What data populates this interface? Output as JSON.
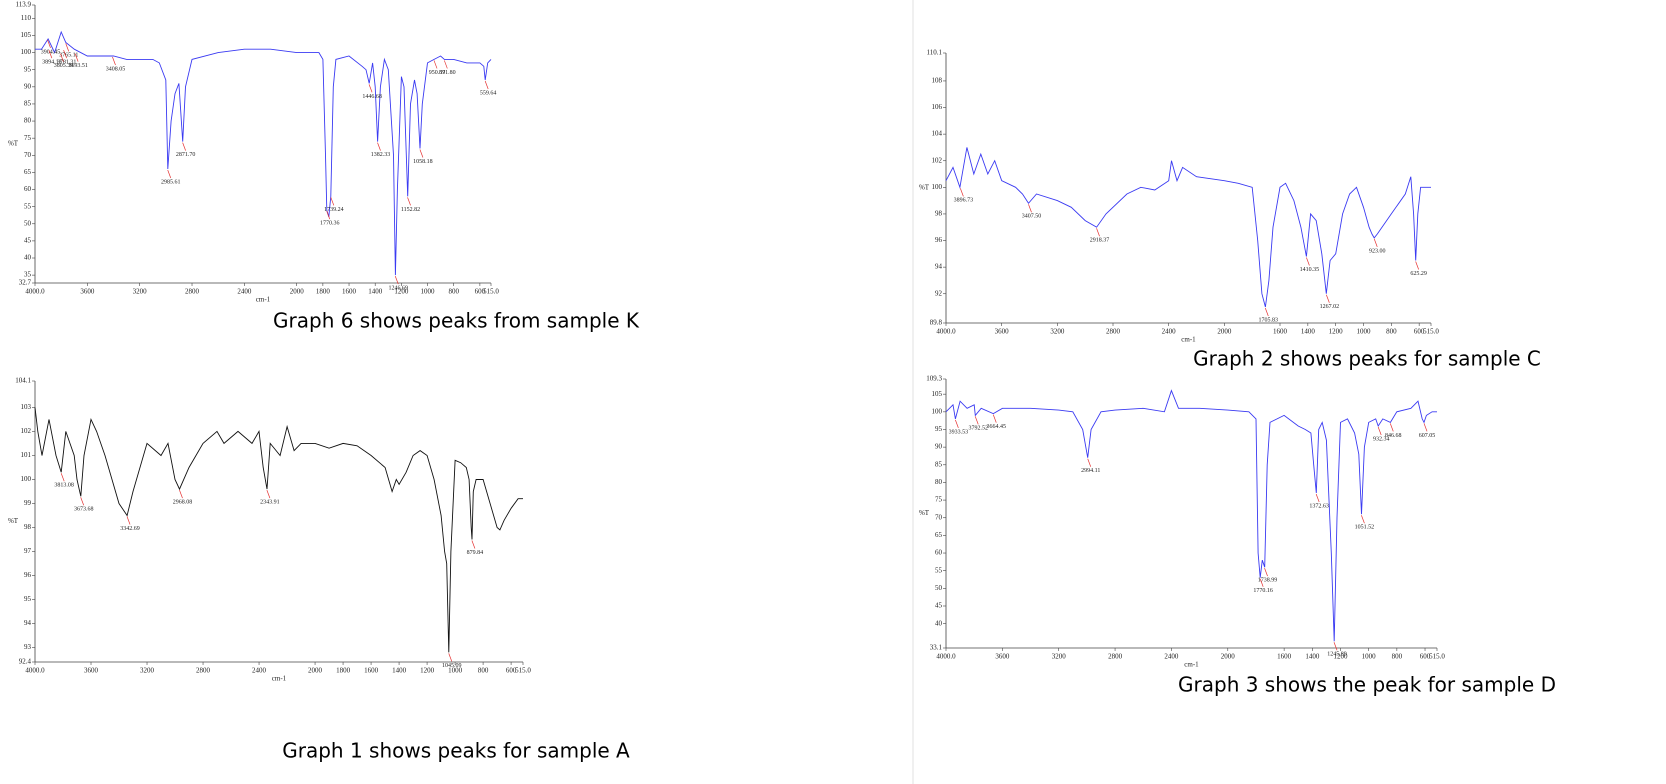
{
  "chart_data": [
    {
      "type": "line",
      "caption": "Graph 6 shows peaks from sample K",
      "xlabel": "cm-1",
      "ylabel": "%T",
      "x": [
        4000,
        3950,
        3900,
        3850,
        3800,
        3765,
        3700,
        3600,
        3500,
        3400,
        3300,
        3200,
        3100,
        3050,
        3000,
        2985,
        2960,
        2930,
        2900,
        2871,
        2850,
        2800,
        2600,
        2400,
        2200,
        2000,
        1900,
        1830,
        1800,
        1780,
        1770,
        1755,
        1739,
        1720,
        1700,
        1600,
        1500,
        1470,
        1446,
        1420,
        1400,
        1382,
        1360,
        1330,
        1300,
        1260,
        1246,
        1230,
        1200,
        1180,
        1152,
        1130,
        1100,
        1080,
        1058,
        1040,
        1000,
        950,
        900,
        871,
        800,
        700,
        600,
        570,
        559,
        540,
        515
      ],
      "series": [
        {
          "color": "#3a3af2",
          "values": [
            101,
            101,
            104,
            100,
            106,
            103,
            101,
            99,
            99,
            99,
            98,
            98,
            98,
            97,
            92,
            66,
            80,
            88,
            91,
            74,
            90,
            98,
            100,
            101,
            101,
            100,
            100,
            100,
            98,
            70,
            54,
            52,
            58,
            90,
            98,
            99,
            96,
            95,
            91,
            97,
            90,
            74,
            90,
            98,
            95,
            70,
            35,
            60,
            93,
            90,
            58,
            85,
            92,
            88,
            72,
            85,
            97,
            98,
            99,
            98,
            98,
            97,
            97,
            96,
            92,
            97,
            98
          ]
        }
      ],
      "xlim": [
        4000,
        515
      ],
      "ylim": [
        32.7,
        113.9
      ],
      "xticks": [
        {
          "value": 4000,
          "label": "4000.0"
        },
        3600,
        3200,
        2800,
        2400,
        2000,
        1800,
        1600,
        1400,
        1200,
        1000,
        800,
        600,
        {
          "value": 515,
          "label": "515.0"
        }
      ],
      "yticks": [
        32.7,
        35,
        40,
        45,
        50,
        55,
        60,
        65,
        70,
        75,
        80,
        85,
        90,
        95,
        100,
        105,
        110,
        113.9
      ],
      "peaks": [
        {
          "x": 3904.45,
          "y": 104,
          "label": "3904.45"
        },
        {
          "x": 3765.11,
          "y": 103,
          "label": "3765.11"
        },
        {
          "x": 3894.18,
          "y": 101,
          "label": "3894.18"
        },
        {
          "x": 3693.51,
          "y": 100,
          "label": "3693.51"
        },
        {
          "x": 3408.05,
          "y": 99,
          "label": "3408.05"
        },
        {
          "x": 3781.31,
          "y": 101,
          "label": "3781.31"
        },
        {
          "x": 3805.39,
          "y": 100,
          "label": "3805.39"
        },
        {
          "x": 2985.61,
          "y": 66,
          "label": "2985.61"
        },
        {
          "x": 2871.7,
          "y": 74,
          "label": "2871.70"
        },
        {
          "x": 1770.36,
          "y": 54,
          "label": "1770.36"
        },
        {
          "x": 1739.24,
          "y": 58,
          "label": "1739.24"
        },
        {
          "x": 1446.68,
          "y": 91,
          "label": "1446.68"
        },
        {
          "x": 1382.33,
          "y": 74,
          "label": "1382.33"
        },
        {
          "x": 1246.69,
          "y": 35,
          "label": "1246.69"
        },
        {
          "x": 1152.82,
          "y": 58,
          "label": "1152.82"
        },
        {
          "x": 1058.18,
          "y": 72,
          "label": "1058.18"
        },
        {
          "x": 950.59,
          "y": 98,
          "label": "950.59"
        },
        {
          "x": 871.8,
          "y": 98,
          "label": "871.80"
        },
        {
          "x": 559.64,
          "y": 92,
          "label": "559.64"
        }
      ]
    },
    {
      "type": "line",
      "caption": "Graph 2 shows peaks for sample C",
      "xlabel": "cm-1",
      "ylabel": "%T",
      "x": [
        4000,
        3950,
        3900,
        3850,
        3800,
        3750,
        3700,
        3650,
        3600,
        3500,
        3450,
        3407,
        3350,
        3200,
        3100,
        3000,
        2918,
        2850,
        2700,
        2600,
        2500,
        2400,
        2380,
        2340,
        2300,
        2200,
        2000,
        1900,
        1800,
        1760,
        1730,
        1705,
        1680,
        1650,
        1600,
        1560,
        1500,
        1450,
        1410,
        1380,
        1340,
        1300,
        1267,
        1240,
        1200,
        1150,
        1100,
        1050,
        1000,
        960,
        940,
        923,
        900,
        800,
        700,
        660,
        640,
        625,
        610,
        590,
        515
      ],
      "series": [
        {
          "color": "#3a3af2",
          "values": [
            100.5,
            101.5,
            100,
            103,
            101,
            102.5,
            101,
            102,
            100.5,
            100,
            99.5,
            98.8,
            99.5,
            99,
            98.5,
            97.5,
            97,
            98,
            99.5,
            100,
            99.8,
            100.5,
            102,
            100.5,
            101.5,
            100.8,
            100.5,
            100.3,
            100,
            96,
            92,
            91,
            93,
            97,
            100,
            100.3,
            99,
            97,
            94.8,
            98,
            97.5,
            95,
            92,
            94.5,
            95,
            98,
            99.5,
            100,
            98.5,
            97,
            96.5,
            96.2,
            96.5,
            98,
            99.5,
            100.8,
            98,
            94.5,
            98,
            100,
            100
          ]
        }
      ],
      "xlim": [
        4000,
        515
      ],
      "ylim": [
        89.8,
        110.1
      ],
      "xticks": [
        {
          "value": 4000,
          "label": "4000.0"
        },
        3600,
        3200,
        2800,
        2400,
        2000,
        1600,
        1400,
        1200,
        1000,
        800,
        600,
        {
          "value": 515,
          "label": "515.0"
        }
      ],
      "yticks": [
        89.8,
        92,
        94,
        96,
        98,
        100,
        102,
        104,
        106,
        108,
        110.1
      ],
      "peaks": [
        {
          "x": 3896.73,
          "y": 100,
          "label": "3896.73"
        },
        {
          "x": 3407.5,
          "y": 98.8,
          "label": "3407.50"
        },
        {
          "x": 2918.37,
          "y": 97,
          "label": "2918.37"
        },
        {
          "x": 1705.83,
          "y": 91,
          "label": "1705.83"
        },
        {
          "x": 1410.35,
          "y": 94.8,
          "label": "1410.35"
        },
        {
          "x": 1267.02,
          "y": 92,
          "label": "1267.02"
        },
        {
          "x": 923.0,
          "y": 96.2,
          "label": "923.00"
        },
        {
          "x": 625.29,
          "y": 94.5,
          "label": "625.29"
        }
      ]
    },
    {
      "type": "line",
      "caption": "Graph 1 shows peaks for sample A",
      "xlabel": "cm-1",
      "ylabel": "%T",
      "x": [
        4000,
        3980,
        3950,
        3900,
        3850,
        3813,
        3780,
        3720,
        3700,
        3673,
        3650,
        3600,
        3560,
        3500,
        3450,
        3400,
        3342,
        3300,
        3200,
        3100,
        3050,
        3000,
        2968,
        2900,
        2800,
        2700,
        2650,
        2550,
        2450,
        2400,
        2370,
        2343,
        2320,
        2250,
        2200,
        2150,
        2100,
        2000,
        1900,
        1800,
        1700,
        1600,
        1500,
        1450,
        1420,
        1400,
        1350,
        1300,
        1250,
        1200,
        1150,
        1100,
        1075,
        1060,
        1045,
        1030,
        1000,
        960,
        920,
        900,
        885,
        879,
        870,
        850,
        800,
        750,
        700,
        680,
        650,
        600,
        550,
        515
      ],
      "series": [
        {
          "color": "#111111",
          "values": [
            103,
            102,
            101,
            102.5,
            101,
            100.3,
            102,
            101,
            100,
            99.3,
            101,
            102.5,
            102,
            101,
            100,
            99,
            98.5,
            99.5,
            101.5,
            101,
            101.5,
            100,
            99.6,
            100.5,
            101.5,
            102,
            101.5,
            102,
            101.5,
            102,
            100.5,
            99.6,
            101.5,
            101,
            102.2,
            101.2,
            101.5,
            101.5,
            101.3,
            101.5,
            101.4,
            101,
            100.5,
            99.5,
            100,
            99.8,
            100.3,
            101,
            101.2,
            101,
            100,
            98.5,
            97,
            96.5,
            92.8,
            97,
            100.8,
            100.7,
            100.5,
            100,
            98,
            97.5,
            99.5,
            100,
            100,
            99,
            98,
            97.9,
            98.3,
            98.8,
            99.2,
            99.2
          ]
        }
      ],
      "xlim": [
        4000,
        515
      ],
      "ylim": [
        92.4,
        104.1
      ],
      "xticks": [
        {
          "value": 4000,
          "label": "4000.0"
        },
        3600,
        3200,
        2800,
        2400,
        2000,
        1800,
        1600,
        1400,
        1200,
        1000,
        800,
        600,
        {
          "value": 515,
          "label": "515.0"
        }
      ],
      "yticks": [
        92.4,
        93,
        94,
        95,
        96,
        97,
        98,
        99,
        100,
        101,
        102,
        103,
        104.1
      ],
      "peaks": [
        {
          "x": 3813.08,
          "y": 100.3,
          "label": "3813.08"
        },
        {
          "x": 3673.68,
          "y": 99.3,
          "label": "3673.68"
        },
        {
          "x": 3342.69,
          "y": 98.5,
          "label": "3342.69"
        },
        {
          "x": 2968.08,
          "y": 99.6,
          "label": "2968.08"
        },
        {
          "x": 2343.91,
          "y": 99.6,
          "label": "2343.91"
        },
        {
          "x": 1045.09,
          "y": 92.8,
          "label": "1045.09"
        },
        {
          "x": 879.84,
          "y": 97.5,
          "label": "879.84"
        }
      ]
    },
    {
      "type": "line",
      "caption": "Graph 3 shows the peak for sample D",
      "xlabel": "cm-1",
      "ylabel": "%T",
      "x": [
        4000,
        3950,
        3933,
        3900,
        3850,
        3800,
        3792,
        3750,
        3664,
        3600,
        3400,
        3200,
        3100,
        3030,
        2994,
        2970,
        2900,
        2800,
        2600,
        2450,
        2400,
        2350,
        2200,
        2000,
        1850,
        1800,
        1785,
        1770,
        1755,
        1738,
        1720,
        1700,
        1600,
        1500,
        1450,
        1410,
        1390,
        1372,
        1355,
        1330,
        1300,
        1265,
        1245,
        1225,
        1200,
        1150,
        1100,
        1070,
        1051,
        1030,
        1000,
        950,
        932,
        900,
        846,
        800,
        700,
        650,
        620,
        607,
        590,
        550,
        515
      ],
      "series": [
        {
          "color": "#3a3af2",
          "values": [
            100,
            102,
            98,
            103,
            101,
            102,
            99,
            101,
            99.5,
            101,
            101,
            100.5,
            100,
            95,
            87,
            95,
            100,
            100.5,
            101,
            100,
            106,
            101,
            101,
            100.5,
            100,
            98,
            60,
            53,
            58,
            56,
            85,
            97,
            99,
            96,
            95,
            94,
            85,
            77,
            95,
            97,
            92,
            60,
            35,
            70,
            97,
            98,
            94,
            88,
            71,
            90,
            97,
            98,
            96,
            98,
            97,
            100,
            101,
            103,
            98,
            97,
            99,
            100,
            100
          ]
        }
      ],
      "xlim": [
        4000,
        515
      ],
      "ylim": [
        33.1,
        109.3
      ],
      "xticks": [
        {
          "value": 4000,
          "label": "4000.0"
        },
        3600,
        3200,
        2800,
        2400,
        2000,
        1600,
        1400,
        1200,
        1000,
        800,
        600,
        {
          "value": 515,
          "label": "515.0"
        }
      ],
      "yticks": [
        33.1,
        40,
        45,
        50,
        55,
        60,
        65,
        70,
        75,
        80,
        85,
        90,
        95,
        100,
        105,
        109.3
      ],
      "peaks": [
        {
          "x": 3933.53,
          "y": 98,
          "label": "3933.53"
        },
        {
          "x": 3792.52,
          "y": 99,
          "label": "3792.52"
        },
        {
          "x": 3664.45,
          "y": 99.5,
          "label": "3664.45"
        },
        {
          "x": 2994.11,
          "y": 87,
          "label": "2994.11"
        },
        {
          "x": 1770.16,
          "y": 53,
          "label": "1770.16"
        },
        {
          "x": 1738.99,
          "y": 56,
          "label": "1738.99"
        },
        {
          "x": 1372.63,
          "y": 77,
          "label": "1372.63"
        },
        {
          "x": 1245.89,
          "y": 35,
          "label": "1245.89"
        },
        {
          "x": 1051.52,
          "y": 71,
          "label": "1051.52"
        },
        {
          "x": 932.34,
          "y": 96,
          "label": "932.34"
        },
        {
          "x": 846.68,
          "y": 97,
          "label": "846.68"
        },
        {
          "x": 607.05,
          "y": 97,
          "label": "607.05"
        }
      ]
    }
  ]
}
